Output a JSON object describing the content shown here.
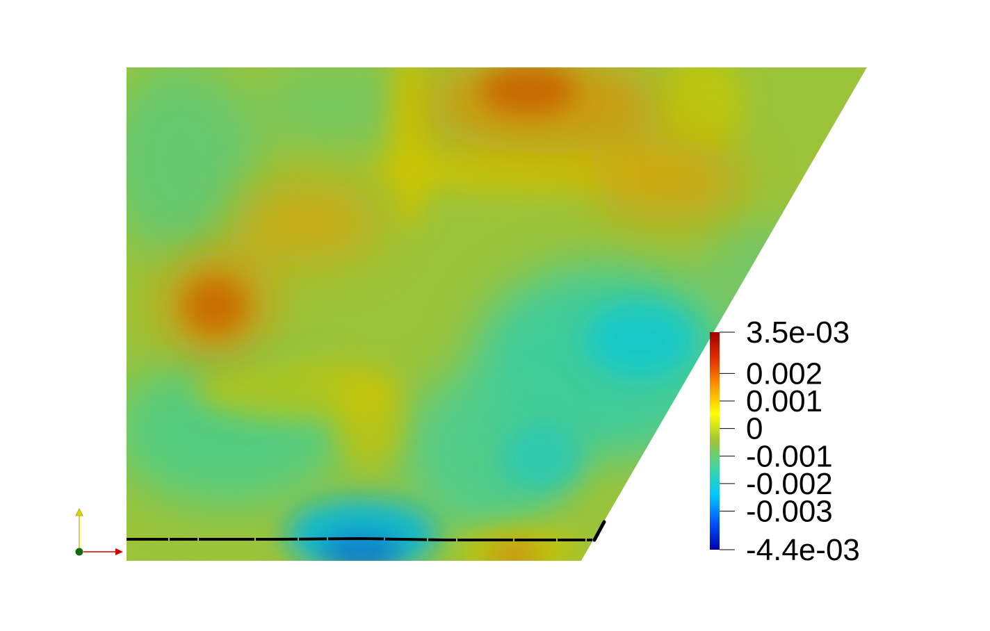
{
  "colors": {
    "background": "#ffffff",
    "base_field": "#9cc43a",
    "warm_high": "#c86400",
    "warm_mid": "#cf9a10",
    "yellow_band": "#cdc400",
    "cool_mid": "#3fcf8c",
    "cyan": "#10c8c8",
    "cool_low": "#0a7ccc",
    "probe_line": "#000000",
    "axis_y": "#c8c800",
    "axis_x": "#d00000",
    "axis_origin": "#0f6b0f"
  },
  "colorbar": {
    "min": -0.0044,
    "max": 0.0035,
    "gradient": [
      "#0000aa",
      "#0055ff",
      "#00c8ff",
      "#3fd6a0",
      "#9cc43a",
      "#ffff00",
      "#ff9900",
      "#e23000",
      "#a00000"
    ],
    "ticks": [
      {
        "value": 0.0035,
        "label": "3.5e-03"
      },
      {
        "value": 0.002,
        "label": "0.002"
      },
      {
        "value": 0.001,
        "label": "0.001"
      },
      {
        "value": 0,
        "label": "0"
      },
      {
        "value": -0.001,
        "label": "-0.001"
      },
      {
        "value": -0.002,
        "label": "-0.002"
      },
      {
        "value": -0.003,
        "label": "-0.003"
      },
      {
        "value": -0.0044,
        "label": "-4.4e-03"
      }
    ]
  },
  "orientation_axes": {
    "icons": [
      "y-axis-arrow-icon",
      "x-axis-arrow-icon",
      "origin-dot-icon"
    ]
  }
}
